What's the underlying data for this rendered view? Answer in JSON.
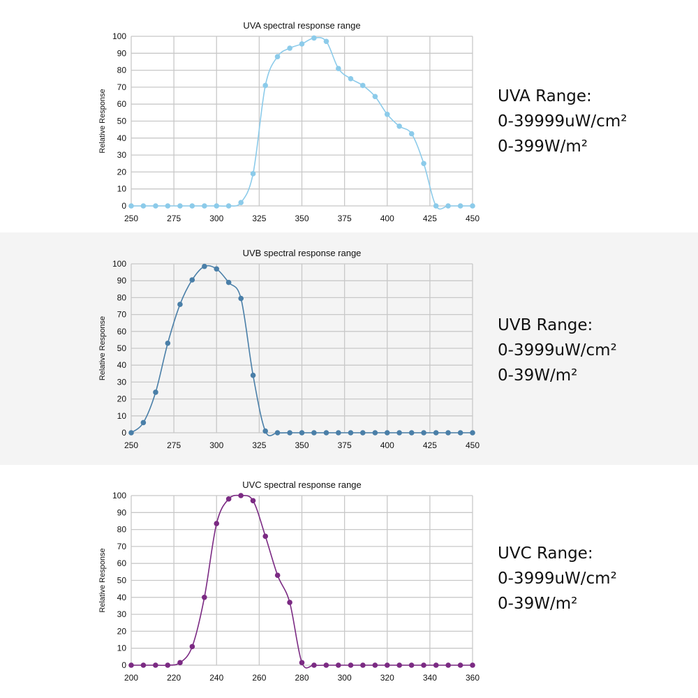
{
  "chart_data": [
    {
      "type": "line",
      "title": "UVA spectral response range",
      "xlabel": "",
      "ylabel": "Relative Response",
      "xlim": [
        250,
        450
      ],
      "ylim": [
        0,
        100
      ],
      "xticks": [
        250,
        275,
        300,
        325,
        350,
        375,
        400,
        425,
        450
      ],
      "yticks": [
        0,
        10,
        20,
        30,
        40,
        50,
        60,
        70,
        80,
        90,
        100
      ],
      "grid": true,
      "color": "#8ccbea",
      "x": [
        250,
        257.1,
        264.3,
        271.4,
        278.6,
        285.7,
        292.9,
        300,
        307.1,
        314.3,
        321.4,
        328.6,
        335.7,
        342.9,
        350,
        357.1,
        364.3,
        371.4,
        378.6,
        385.7,
        392.9,
        400,
        407.1,
        414.3,
        421.4,
        428.6,
        435.7,
        442.9,
        450
      ],
      "values": [
        0,
        0,
        0,
        0,
        0,
        0,
        0,
        0,
        0,
        2,
        19,
        71,
        88,
        93,
        95.5,
        99,
        97,
        81,
        75,
        71,
        64.5,
        54,
        47,
        42.5,
        25,
        0,
        0,
        0,
        0
      ]
    },
    {
      "type": "line",
      "title": "UVB spectral response range",
      "xlabel": "",
      "ylabel": "Relative Response",
      "xlim": [
        250,
        450
      ],
      "ylim": [
        0,
        100
      ],
      "xticks": [
        250,
        275,
        300,
        325,
        350,
        375,
        400,
        425,
        450
      ],
      "yticks": [
        0,
        10,
        20,
        30,
        40,
        50,
        60,
        70,
        80,
        90,
        100
      ],
      "grid": true,
      "color": "#4a7fa8",
      "x": [
        250,
        257.1,
        264.3,
        271.4,
        278.6,
        285.7,
        292.9,
        300,
        307.1,
        314.3,
        321.4,
        328.6,
        335.7,
        342.9,
        350,
        357.1,
        364.3,
        371.4,
        378.6,
        385.7,
        392.9,
        400,
        407.1,
        414.3,
        421.4,
        428.6,
        435.7,
        442.9,
        450
      ],
      "values": [
        0,
        6,
        24,
        53,
        76,
        90.5,
        98.5,
        97,
        89,
        79.5,
        34,
        1,
        0,
        0,
        0,
        0,
        0,
        0,
        0,
        0,
        0,
        0,
        0,
        0,
        0,
        0,
        0,
        0,
        0
      ]
    },
    {
      "type": "line",
      "title": "UVC spectral response range",
      "xlabel": "",
      "ylabel": "Relative Response",
      "xlim": [
        200,
        360
      ],
      "ylim": [
        0,
        100
      ],
      "xticks": [
        200,
        220,
        240,
        260,
        280,
        300,
        320,
        340,
        360
      ],
      "yticks": [
        0,
        10,
        20,
        30,
        40,
        50,
        60,
        70,
        80,
        90,
        100
      ],
      "grid": true,
      "color": "#7b2a83",
      "x": [
        200,
        205.7,
        211.4,
        217.1,
        222.9,
        228.6,
        234.3,
        240,
        245.7,
        251.4,
        257.1,
        262.9,
        268.6,
        274.3,
        280,
        285.7,
        291.4,
        297.1,
        302.9,
        308.6,
        314.3,
        320,
        325.7,
        331.4,
        337.1,
        342.9,
        348.6,
        354.3,
        360
      ],
      "values": [
        0,
        0,
        0,
        0,
        1.5,
        11,
        40,
        83.5,
        98,
        100,
        97,
        76,
        53,
        37,
        1.5,
        0,
        0,
        0,
        0,
        0,
        0,
        0,
        0,
        0,
        0,
        0,
        0,
        0,
        0
      ]
    }
  ],
  "ranges": [
    {
      "label": "UVA Range:",
      "line1": "0-39999uW/cm²",
      "line2": "0-399W/m²"
    },
    {
      "label": "UVB Range:",
      "line1": "0-3999uW/cm²",
      "line2": "0-39W/m²"
    },
    {
      "label": "UVC Range:",
      "line1": "0-3999uW/cm²",
      "line2": "0-39W/m²"
    }
  ]
}
